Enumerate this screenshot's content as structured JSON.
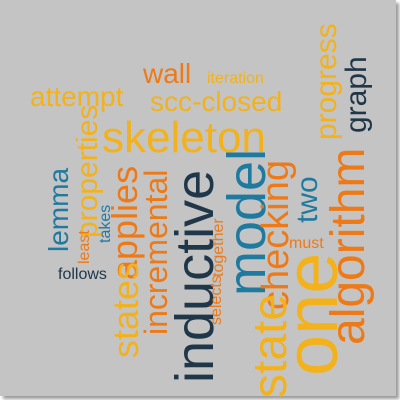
{
  "colors": {
    "background": "#c4c4c4",
    "orange": "#ee7a17",
    "yellow": "#f3b21c",
    "navy": "#20374a",
    "teal": "#1f7aa0"
  },
  "words": {
    "wall": "wall",
    "iteration": "iteration",
    "attempt": "attempt",
    "scc_closed": "scc-closed",
    "skeleton": "skeleton",
    "progress": "progress",
    "graph": "graph",
    "algorithm": "algorithm",
    "properties": "properties",
    "lemma": "lemma",
    "applies": "applies",
    "states": "states",
    "least": "least",
    "takes": "takes",
    "follows": "follows",
    "incremental": "incremental",
    "inductive": "inductive",
    "together": "together",
    "selects": "selects",
    "model": "model",
    "checking": "checking",
    "must": "must",
    "two": "two",
    "state": "state",
    "one": "one"
  }
}
